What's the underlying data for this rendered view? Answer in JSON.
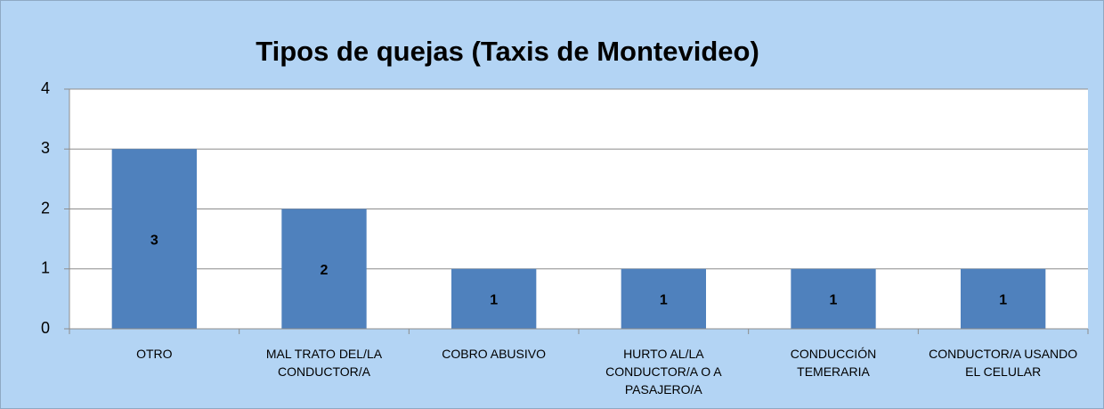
{
  "chart_data": {
    "type": "bar",
    "title": "Tipos de quejas (Taxis de Montevideo)",
    "categories": [
      "OTRO",
      "MAL TRATO DEL/LA CONDUCTOR/A",
      "COBRO ABUSIVO",
      "HURTO AL/LA CONDUCTOR/A O A PASAJERO/A",
      "CONDUCCIÓN TEMERARIA",
      "CONDUCTOR/A USANDO EL CELULAR"
    ],
    "values": [
      3,
      2,
      1,
      1,
      1,
      1
    ],
    "color": "#4f81bd",
    "ylim": [
      0,
      4
    ],
    "yticks": [
      0,
      1,
      2,
      3,
      4
    ],
    "grid": true
  }
}
